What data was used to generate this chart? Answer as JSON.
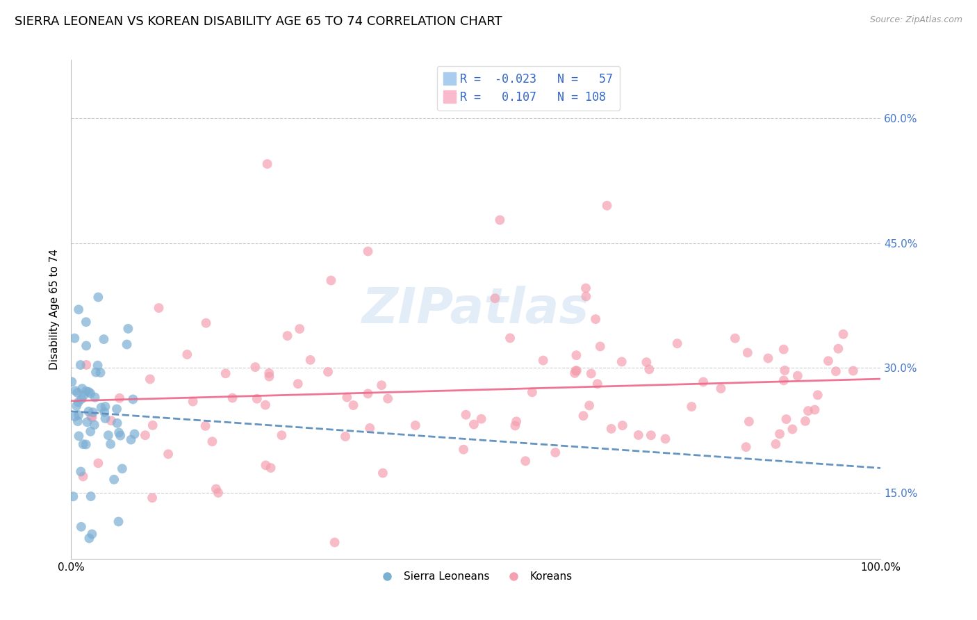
{
  "title": "SIERRA LEONEAN VS KOREAN DISABILITY AGE 65 TO 74 CORRELATION CHART",
  "source": "Source: ZipAtlas.com",
  "xlabel": "",
  "ylabel": "Disability Age 65 to 74",
  "xlim": [
    0.0,
    1.0
  ],
  "ylim": [
    0.07,
    0.67
  ],
  "yticks": [
    0.15,
    0.3,
    0.45,
    0.6
  ],
  "ytick_labels": [
    "15.0%",
    "30.0%",
    "45.0%",
    "60.0%"
  ],
  "xticks": [
    0.0,
    1.0
  ],
  "xtick_labels": [
    "0.0%",
    "100.0%"
  ],
  "sl_R": -0.023,
  "sl_N": 57,
  "k_R": 0.107,
  "k_N": 108,
  "sl_color": "#7BAFD4",
  "k_color": "#F4A0B0",
  "sl_line_color": "#5588BB",
  "k_line_color": "#EE6688",
  "background_color": "#FFFFFF",
  "legend_labels": [
    "Sierra Leoneans",
    "Koreans"
  ],
  "title_fontsize": 13,
  "axis_label_fontsize": 11,
  "tick_fontsize": 11,
  "tick_color": "#4477CC",
  "seed": 42
}
